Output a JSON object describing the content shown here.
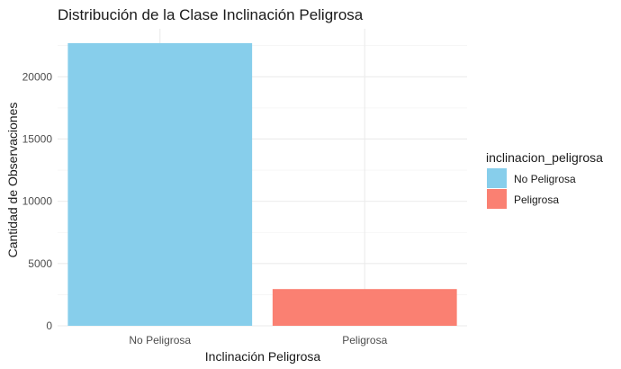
{
  "chart_data": {
    "type": "bar",
    "title": "Distribución de la Clase Inclinación Peligrosa",
    "xlabel": "Inclinación Peligrosa",
    "ylabel": "Cantidad de Observaciones",
    "categories": [
      "No Peligrosa",
      "Peligrosa"
    ],
    "values": [
      22700,
      2950
    ],
    "colors": [
      "#87CEEB",
      "#FA8072"
    ],
    "ylim": [
      0,
      23850
    ],
    "yticks": [
      0,
      5000,
      10000,
      15000,
      20000
    ],
    "ytick_labels": [
      "0",
      "5000",
      "10000",
      "15000",
      "20000"
    ],
    "grid": true,
    "legend": {
      "title": "inclinacion_peligrosa",
      "position": "right",
      "entries": [
        "No Peligrosa",
        "Peligrosa"
      ]
    }
  }
}
